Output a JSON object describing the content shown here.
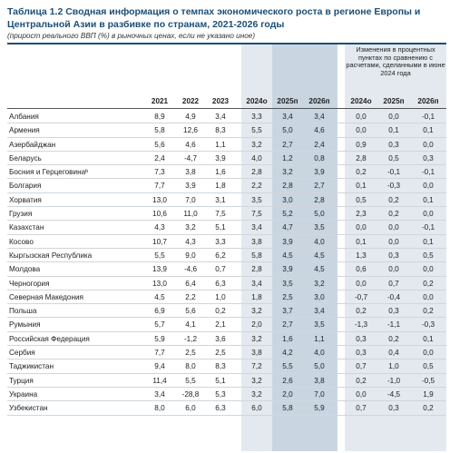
{
  "title": {
    "number": "Таблица 1.2",
    "text": "Сводная информация о темпах экономического роста в регионе Европы и Центральной Азии в разбивке по странам, 2021-2026 годы"
  },
  "subtitle": "(прирост реального ВВП (%) в рыночных ценах, если не указано иное)",
  "header_note": "Изменения в процентных пунктах по сравнению с расчетами, сделанными в июне 2024 года",
  "columns": [
    "2021",
    "2022",
    "2023",
    "2024о",
    "2025п",
    "2026п",
    "2024о",
    "2025п",
    "2026п"
  ],
  "rows": [
    {
      "country": "Албания",
      "values": [
        "8,9",
        "4,9",
        "3,4",
        "3,3",
        "3,4",
        "3,4",
        "0,0",
        "0,0",
        "-0,1"
      ]
    },
    {
      "country": "Армения",
      "values": [
        "5,8",
        "12,6",
        "8,3",
        "5,5",
        "5,0",
        "4,6",
        "0,0",
        "0,1",
        "0,1"
      ]
    },
    {
      "country": "Азербайджан",
      "values": [
        "5,6",
        "4,6",
        "1,1",
        "3,2",
        "2,7",
        "2,4",
        "0,9",
        "0,3",
        "0,0"
      ]
    },
    {
      "country": "Беларусь",
      "values": [
        "2,4",
        "-4,7",
        "3,9",
        "4,0",
        "1,2",
        "0,8",
        "2,8",
        "0,5",
        "0,3"
      ]
    },
    {
      "country": "Босния и Герцеговинаᵇ",
      "values": [
        "7,3",
        "3,8",
        "1,6",
        "2,8",
        "3,2",
        "3,9",
        "0,2",
        "-0,1",
        "-0,1"
      ]
    },
    {
      "country": "Болгария",
      "values": [
        "7,7",
        "3,9",
        "1,8",
        "2,2",
        "2,8",
        "2,7",
        "0,1",
        "-0,3",
        "0,0"
      ]
    },
    {
      "country": "Хорватия",
      "values": [
        "13,0",
        "7,0",
        "3,1",
        "3,5",
        "3,0",
        "2,8",
        "0,5",
        "0,2",
        "0,1"
      ]
    },
    {
      "country": "Грузия",
      "values": [
        "10,6",
        "11,0",
        "7,5",
        "7,5",
        "5,2",
        "5,0",
        "2,3",
        "0,2",
        "0,0"
      ]
    },
    {
      "country": "Казахстан",
      "values": [
        "4,3",
        "3,2",
        "5,1",
        "3,4",
        "4,7",
        "3,5",
        "0,0",
        "0,0",
        "-0,1"
      ]
    },
    {
      "country": "Косово",
      "values": [
        "10,7",
        "4,3",
        "3,3",
        "3,8",
        "3,9",
        "4,0",
        "0,1",
        "0,0",
        "0,1"
      ]
    },
    {
      "country": "Кыргызская Республика",
      "values": [
        "5,5",
        "9,0",
        "6,2",
        "5,8",
        "4,5",
        "4,5",
        "1,3",
        "0,3",
        "0,5"
      ]
    },
    {
      "country": "Молдова",
      "values": [
        "13,9",
        "-4,6",
        "0,7",
        "2,8",
        "3,9",
        "4,5",
        "0,6",
        "0,0",
        "0,0"
      ]
    },
    {
      "country": "Черногория",
      "values": [
        "13,0",
        "6,4",
        "6,3",
        "3,4",
        "3,5",
        "3,2",
        "0,0",
        "0,7",
        "0,2"
      ]
    },
    {
      "country": "Северная Македония",
      "values": [
        "4,5",
        "2,2",
        "1,0",
        "1,8",
        "2,5",
        "3,0",
        "-0,7",
        "-0,4",
        "0,0"
      ]
    },
    {
      "country": "Польша",
      "values": [
        "6,9",
        "5,6",
        "0,2",
        "3,2",
        "3,7",
        "3,4",
        "0,2",
        "0,3",
        "0,2"
      ]
    },
    {
      "country": "Румыния",
      "values": [
        "5,7",
        "4,1",
        "2,1",
        "2,0",
        "2,7",
        "3,5",
        "-1,3",
        "-1,1",
        "-0,3"
      ]
    },
    {
      "country": "Российская Федерация",
      "values": [
        "5,9",
        "-1,2",
        "3,6",
        "3,2",
        "1,6",
        "1,1",
        "0,3",
        "0,2",
        "0,1"
      ]
    },
    {
      "country": "Сербия",
      "values": [
        "7,7",
        "2,5",
        "2,5",
        "3,8",
        "4,2",
        "4,0",
        "0,3",
        "0,4",
        "0,0"
      ]
    },
    {
      "country": "Таджикистан",
      "values": [
        "9,4",
        "8,0",
        "8,3",
        "7,2",
        "5,5",
        "5,0",
        "0,7",
        "1,0",
        "0,5"
      ]
    },
    {
      "country": "Турция",
      "values": [
        "11,4",
        "5,5",
        "5,1",
        "3,2",
        "2,6",
        "3,8",
        "0,2",
        "-1,0",
        "-0,5"
      ]
    },
    {
      "country": "Украина",
      "values": [
        "3,4",
        "-28,8",
        "5,3",
        "3,2",
        "2,0",
        "7,0",
        "0,0",
        "-4,5",
        "1,9"
      ]
    },
    {
      "country": "Узбекистан",
      "values": [
        "8,0",
        "6,0",
        "6,3",
        "6,0",
        "5,8",
        "5,9",
        "0,7",
        "0,3",
        "0,2"
      ]
    }
  ]
}
